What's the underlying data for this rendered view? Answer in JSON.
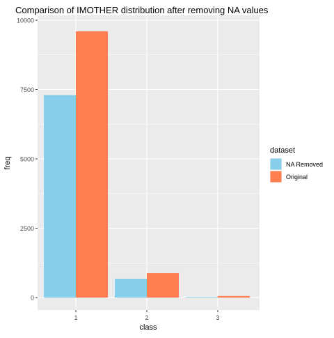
{
  "chart_data": {
    "type": "bar",
    "title": "Comparison of IMOTHER distribution after removing NA values",
    "xlabel": "class",
    "ylabel": "freq",
    "categories": [
      "1",
      "2",
      "3"
    ],
    "series": [
      {
        "name": "NA Removed",
        "color": "#87CEEB",
        "values": [
          7300,
          680,
          20
        ]
      },
      {
        "name": "Original",
        "color": "#FF7F50",
        "values": [
          9600,
          880,
          55
        ]
      }
    ],
    "ylim": [
      0,
      10000
    ],
    "yticks": [
      0,
      2500,
      5000,
      7500,
      10000
    ],
    "ytick_labels": [
      "0",
      "2500",
      "5000",
      "7500",
      "10000"
    ],
    "grid": true,
    "panel_background": "#EBEBEB",
    "legend": {
      "title": "dataset",
      "placement": "right",
      "entries": [
        "NA Removed",
        "Original"
      ]
    }
  }
}
